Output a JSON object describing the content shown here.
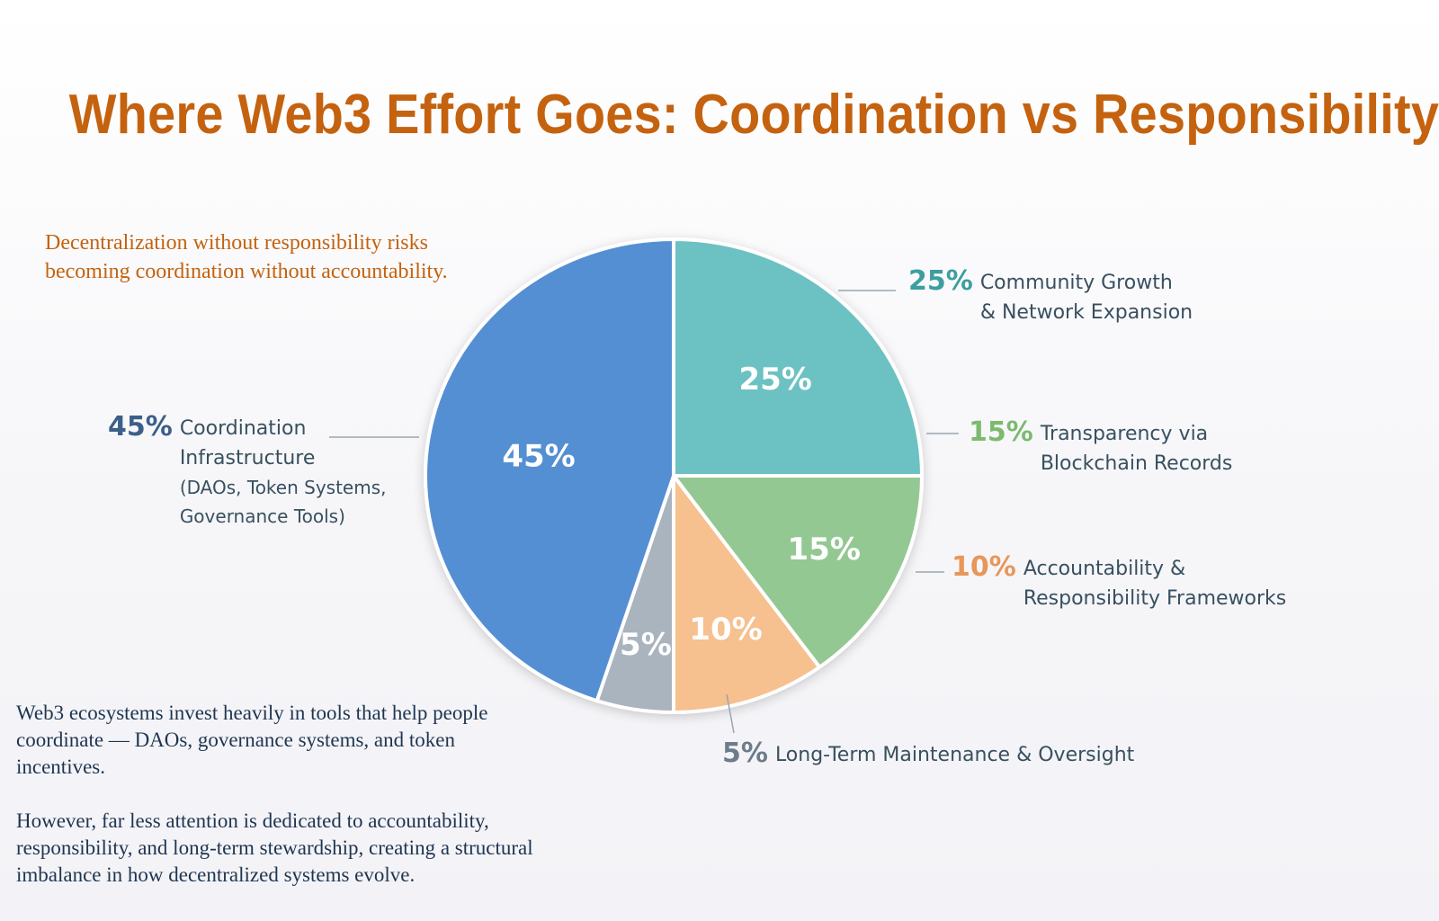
{
  "title": "Where Web3 Effort Goes: Coordination vs Responsibility",
  "quote": "Decentralization without responsibility risks becoming coordination without accountability.",
  "body": [
    "Web3 ecosystems invest heavily in tools that help people coordinate — DAOs, governance systems, and token incentives.",
    "However, far less attention is dedicated to accountability, responsibility, and long-term stewardship, creating a structural imbalance in how decentralized systems evolve."
  ],
  "colors": {
    "title": "#c4620f",
    "quote": "#c4620f",
    "body": "#1f3550",
    "label_text": "#38505f"
  },
  "chart_data": {
    "type": "pie",
    "slices": [
      {
        "pct_label": "25%",
        "value": 25,
        "label_lines": [
          "Community Growth",
          "& Network Expansion"
        ],
        "sub_lines": [],
        "color": "#6cc1c2",
        "label_color": "#3c9ea0"
      },
      {
        "pct_label": "15%",
        "value": 15,
        "label_lines": [
          "Transparency via",
          "Blockchain Records"
        ],
        "sub_lines": [],
        "color": "#94c892",
        "label_color": "#7cba6e"
      },
      {
        "pct_label": "10%",
        "value": 10,
        "label_lines": [
          "Accountability &",
          "Responsibility Frameworks"
        ],
        "sub_lines": [],
        "color": "#f6c08f",
        "label_color": "#e8965a"
      },
      {
        "pct_label": "5%",
        "value": 5,
        "label_lines": [
          "Long-Term Maintenance & Oversight"
        ],
        "sub_lines": [],
        "color": "#aab4bf",
        "label_color": "#6e7c8a"
      },
      {
        "pct_label": "45%",
        "value": 45,
        "label_lines": [
          "Coordination",
          "Infrastructure"
        ],
        "sub_lines": [
          "(DAOs, Token Systems,",
          "Governance Tools)"
        ],
        "color": "#548fd3",
        "label_color": "#3c5f8a"
      }
    ]
  }
}
